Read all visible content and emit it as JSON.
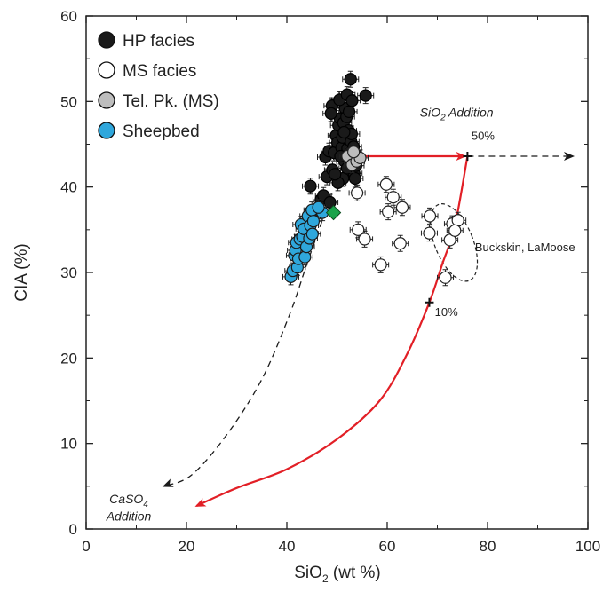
{
  "chart_data": {
    "type": "scatter",
    "xlabel": "SiO",
    "xlabel_sub": "2",
    "xlabel_unit": " (wt %)",
    "ylabel": "CIA (%)",
    "xlim": [
      0,
      100
    ],
    "ylim": [
      0,
      60
    ],
    "xticks": [
      0,
      20,
      40,
      60,
      80,
      100
    ],
    "yticks": [
      0,
      10,
      20,
      30,
      40,
      50,
      60
    ],
    "grid": false,
    "legend_position": "top-left",
    "colors": {
      "hp": "#1a1a1a",
      "ms": "#ffffff",
      "telpk": "#bdbdbd",
      "sheepbed": "#2fa7dc",
      "diamond": "#1aa34a",
      "curve": "#e21f26",
      "dashed": "#1a1a1a"
    },
    "series": [
      {
        "name": "HP facies",
        "marker": "filled-black-circle",
        "points": [
          [
            46.2,
            37.2
          ],
          [
            46.8,
            38.5
          ],
          [
            47.3,
            39.0
          ],
          [
            48.0,
            41.2
          ],
          [
            47.7,
            43.5
          ],
          [
            48.4,
            44.2
          ],
          [
            49.1,
            42.0
          ],
          [
            49.4,
            44.0
          ],
          [
            49.8,
            46.0
          ],
          [
            50.1,
            45.2
          ],
          [
            50.3,
            47.2
          ],
          [
            50.6,
            48.0
          ],
          [
            50.9,
            44.6
          ],
          [
            51.1,
            45.8
          ],
          [
            51.3,
            47.5
          ],
          [
            51.5,
            43.0
          ],
          [
            51.6,
            49.2
          ],
          [
            51.9,
            48.2
          ],
          [
            52.1,
            44.5
          ],
          [
            52.3,
            46.6
          ],
          [
            52.4,
            48.8
          ],
          [
            52.6,
            44.0
          ],
          [
            52.8,
            45.3
          ],
          [
            52.9,
            46.2
          ],
          [
            53.1,
            43.3
          ],
          [
            53.3,
            44.7
          ],
          [
            53.4,
            41.6
          ],
          [
            53.6,
            41.0
          ],
          [
            49.0,
            49.5
          ],
          [
            50.5,
            50.2
          ],
          [
            52.0,
            50.8
          ],
          [
            53.0,
            50.1
          ],
          [
            55.7,
            50.7
          ],
          [
            52.7,
            52.6
          ],
          [
            51.2,
            41.0
          ],
          [
            50.2,
            40.5
          ],
          [
            48.6,
            38.2
          ],
          [
            44.7,
            40.1
          ],
          [
            48.8,
            48.6
          ],
          [
            51.4,
            46.4
          ],
          [
            50.7,
            43.6
          ],
          [
            52.0,
            42.2
          ],
          [
            53.8,
            42.5
          ],
          [
            49.6,
            41.5
          ]
        ]
      },
      {
        "name": "MS facies",
        "marker": "open-circle",
        "points": [
          [
            54.0,
            39.3
          ],
          [
            54.2,
            35.0
          ],
          [
            55.5,
            33.9
          ],
          [
            59.8,
            40.3
          ],
          [
            60.2,
            37.1
          ],
          [
            61.2,
            38.8
          ],
          [
            63.0,
            37.6
          ],
          [
            62.6,
            33.4
          ],
          [
            58.7,
            30.9
          ],
          [
            68.5,
            36.6
          ],
          [
            68.4,
            34.6
          ],
          [
            71.6,
            29.4
          ],
          [
            72.5,
            33.8
          ],
          [
            73.0,
            35.7
          ],
          [
            74.1,
            36.1
          ],
          [
            73.5,
            34.9
          ]
        ]
      },
      {
        "name": "Tel. Pk. (MS)",
        "marker": "gray-circle",
        "points": [
          [
            52.1,
            43.6
          ],
          [
            53.0,
            42.6
          ],
          [
            53.9,
            43.0
          ],
          [
            54.6,
            43.4
          ],
          [
            53.3,
            44.1
          ]
        ]
      },
      {
        "name": "Sheepbed",
        "marker": "blue-circle",
        "points": [
          [
            40.8,
            29.5
          ],
          [
            41.2,
            30.2
          ],
          [
            41.5,
            32.0
          ],
          [
            41.7,
            32.6
          ],
          [
            41.9,
            33.5
          ],
          [
            42.1,
            30.6
          ],
          [
            42.3,
            31.6
          ],
          [
            42.6,
            33.9
          ],
          [
            42.8,
            35.6
          ],
          [
            43.1,
            34.2
          ],
          [
            43.4,
            35.1
          ],
          [
            43.6,
            31.8
          ],
          [
            43.9,
            33.0
          ],
          [
            44.2,
            36.6
          ],
          [
            44.5,
            34.0
          ],
          [
            44.7,
            35.5
          ],
          [
            45.0,
            37.3
          ],
          [
            45.3,
            36.0
          ],
          [
            45.1,
            34.5
          ],
          [
            47.1,
            37.0
          ],
          [
            46.3,
            37.6
          ]
        ]
      }
    ],
    "diamond_point": [
      49.3,
      37.0
    ],
    "buckskin_ellipse": {
      "cx": 73.3,
      "cy": 33.5,
      "rx": 3.8,
      "ry": 4.8,
      "angle": -22
    },
    "red_arrow_line": [
      [
        55.0,
        43.6
      ],
      [
        75.5,
        43.6
      ]
    ],
    "red_curve": [
      [
        76.0,
        43.6
      ],
      [
        73.5,
        35.5
      ],
      [
        71.0,
        31.0
      ],
      [
        68.4,
        26.5
      ],
      [
        64.0,
        20.5
      ],
      [
        58.5,
        15.0
      ],
      [
        50.0,
        10.5
      ],
      [
        40.0,
        7.0
      ],
      [
        30.0,
        4.8
      ],
      [
        22.0,
        2.7
      ]
    ],
    "black_dashed_h": [
      [
        76.0,
        43.6
      ],
      [
        97.0,
        43.6
      ]
    ],
    "black_dashed_curve": [
      [
        47.0,
        36.0
      ],
      [
        44.0,
        31.0
      ],
      [
        40.5,
        25.0
      ],
      [
        35.0,
        17.5
      ],
      [
        28.0,
        11.0
      ],
      [
        21.0,
        6.3
      ],
      [
        15.5,
        5.0
      ]
    ],
    "tick_marks": [
      [
        76.0,
        43.6
      ],
      [
        68.4,
        26.5
      ]
    ],
    "annotations": {
      "sio2_addition": "SiO2 Addition",
      "sio2_addition_main": "SiO",
      "sio2_addition_sub": "2",
      "sio2_addition_rest": " Addition",
      "pct50": "50%",
      "pct10": "10%",
      "buckskin": "Buckskin, LaMoose",
      "caso4_main": "CaSO",
      "caso4_sub": "4",
      "caso4_line2": "Addition"
    }
  }
}
